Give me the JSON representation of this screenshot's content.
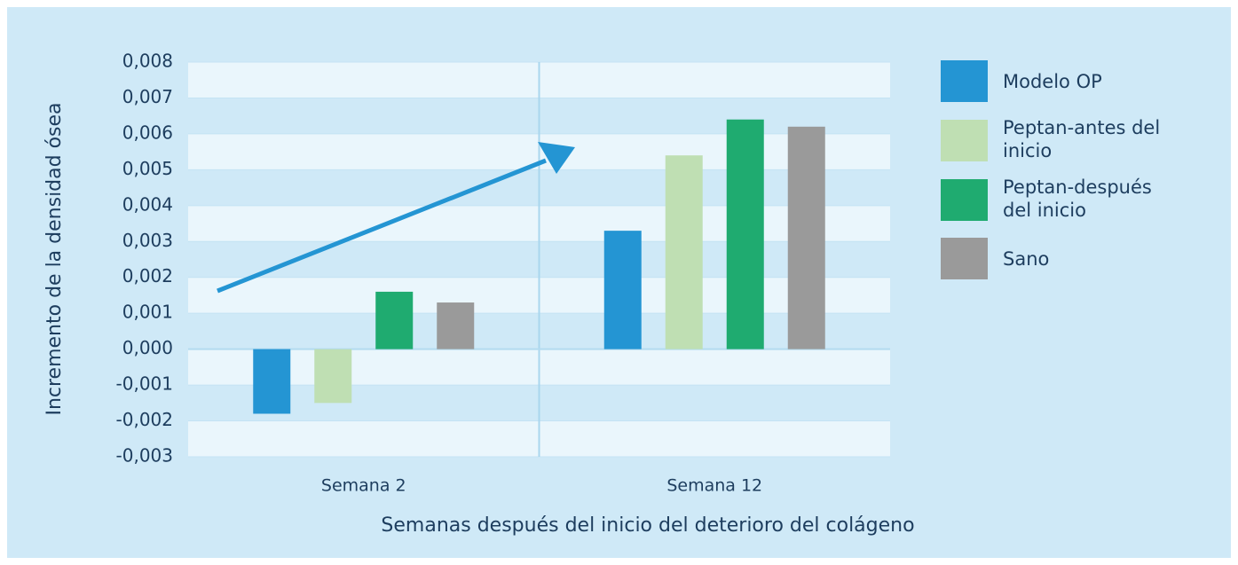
{
  "chart_data": {
    "type": "bar",
    "categories": [
      "Semana 2",
      "Semana 12"
    ],
    "series": [
      {
        "name": "Modelo OP",
        "color": "#2495d3",
        "values": [
          -0.0018,
          0.0033
        ]
      },
      {
        "name": "Peptan-antes del inicio",
        "color": "#bfdfb3",
        "values": [
          -0.0015,
          0.0054
        ]
      },
      {
        "name": "Peptan-después del inicio",
        "color": "#1fab70",
        "values": [
          0.0016,
          0.0064
        ]
      },
      {
        "name": "Sano",
        "color": "#9a9a9a",
        "values": [
          0.0013,
          0.0062
        ]
      }
    ],
    "xlabel": "Semanas después del inicio del deterioro del colágeno",
    "ylabel": "Incremento de la densidad ósea",
    "ylim": [
      -0.003,
      0.008
    ],
    "yticks": [
      {
        "value": -0.003,
        "label": "-0,003"
      },
      {
        "value": -0.002,
        "label": "-0,002"
      },
      {
        "value": -0.001,
        "label": "-0,001"
      },
      {
        "value": 0,
        "label": "0,000"
      },
      {
        "value": 0.001,
        "label": "0,001"
      },
      {
        "value": 0.002,
        "label": "0,002"
      },
      {
        "value": 0.003,
        "label": "0,003"
      },
      {
        "value": 0.004,
        "label": "0,004"
      },
      {
        "value": 0.005,
        "label": "0,005"
      },
      {
        "value": 0.006,
        "label": "0,006"
      },
      {
        "value": 0.007,
        "label": "0,007"
      },
      {
        "value": 0.008,
        "label": "0,008"
      }
    ],
    "grid": true,
    "legend": "right"
  }
}
